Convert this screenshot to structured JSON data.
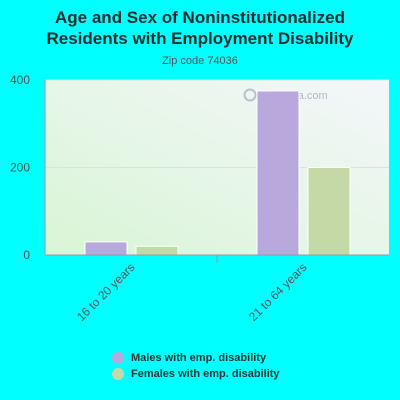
{
  "chart_data": {
    "type": "bar",
    "title_lines": [
      "Age and Sex of Noninstitutionalized",
      "Residents with Employment Disability"
    ],
    "subtitle": "Zip code 74036",
    "categories": [
      "16 to 20 years",
      "21 to 64 years"
    ],
    "series": [
      {
        "name": "Males with emp. disability",
        "values": [
          30,
          375
        ],
        "color": "#b9a8dc"
      },
      {
        "name": "Females with emp. disability",
        "values": [
          20,
          200
        ],
        "color": "#c5d9a7"
      }
    ],
    "ylim": [
      0,
      400
    ],
    "yticks": [
      0,
      200,
      400
    ],
    "grid": true,
    "legend": "bottom"
  },
  "watermark": "City-Data.com",
  "colors": {
    "background": "#00ffff",
    "plot_top": "#f4f6fa",
    "plot_bottom": "#d9f5d6"
  }
}
